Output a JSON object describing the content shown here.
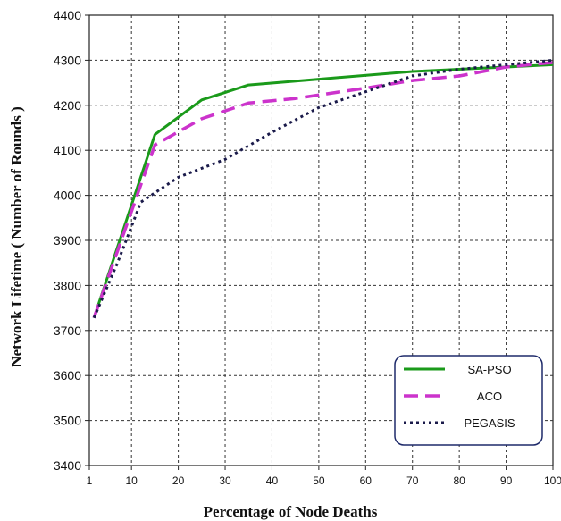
{
  "chart_data": {
    "type": "line",
    "xlabel": "Percentage of Node Deaths",
    "ylabel": "Network Lifetime ( Number of Rounds )",
    "xlim": [
      1,
      100
    ],
    "ylim": [
      3400,
      4400
    ],
    "x_ticks": [
      1,
      10,
      20,
      30,
      40,
      50,
      60,
      70,
      80,
      90,
      100
    ],
    "y_ticks": [
      3400,
      3500,
      3600,
      3700,
      3800,
      3900,
      4000,
      4100,
      4200,
      4300,
      4400
    ],
    "grid": true,
    "legend_position": "bottom-right",
    "series": [
      {
        "name": "SA-PSO",
        "color": "#1a9a1a",
        "style": "solid",
        "points": [
          [
            2,
            3728
          ],
          [
            15,
            4135
          ],
          [
            25,
            4212
          ],
          [
            35,
            4245
          ],
          [
            50,
            4258
          ],
          [
            70,
            4275
          ],
          [
            90,
            4285
          ],
          [
            100,
            4290
          ]
        ]
      },
      {
        "name": "ACO",
        "color": "#cc33cc",
        "style": "dashed",
        "points": [
          [
            2,
            3728
          ],
          [
            15,
            4112
          ],
          [
            25,
            4170
          ],
          [
            35,
            4205
          ],
          [
            45,
            4215
          ],
          [
            60,
            4238
          ],
          [
            70,
            4255
          ],
          [
            80,
            4265
          ],
          [
            90,
            4285
          ],
          [
            100,
            4295
          ]
        ]
      },
      {
        "name": "PEGASIS",
        "color": "#1a1a4a",
        "style": "dotted",
        "points": [
          [
            2,
            3728
          ],
          [
            7,
            3850
          ],
          [
            12,
            3985
          ],
          [
            20,
            4040
          ],
          [
            30,
            4080
          ],
          [
            40,
            4140
          ],
          [
            50,
            4195
          ],
          [
            60,
            4230
          ],
          [
            70,
            4265
          ],
          [
            80,
            4280
          ],
          [
            90,
            4290
          ],
          [
            100,
            4300
          ]
        ]
      }
    ]
  }
}
